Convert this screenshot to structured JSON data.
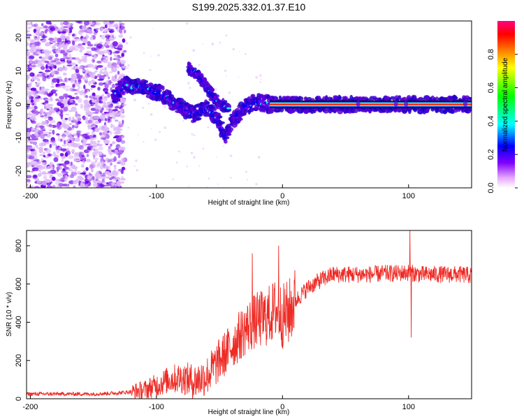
{
  "title": "S199.2025.332.01.37.E10",
  "chart_data": [
    {
      "type": "heatmap",
      "name": "spectrogram",
      "xlabel": "Height of straight line (km)",
      "ylabel": "Frequency (Hz)",
      "xlim": [
        -203,
        150
      ],
      "ylim": [
        -25,
        25
      ],
      "xticks": [
        -200,
        -100,
        0,
        100
      ],
      "yticks": [
        -20,
        -10,
        0,
        10,
        20
      ],
      "colorbar": {
        "label": "Normalized spectral amplitude",
        "ticks": [
          0.0,
          0.2,
          0.4,
          0.6,
          0.8
        ],
        "range": [
          0,
          1
        ],
        "colors": [
          "#ffffff",
          "#e6a8ff",
          "#8000ff",
          "#0000ff",
          "#00ffff",
          "#00ff00",
          "#ffff00",
          "#ff8000",
          "#ff0000",
          "#ff0080"
        ]
      },
      "features": [
        {
          "label": "noise",
          "x_range": [
            -203,
            -125
          ],
          "freq_range": [
            -25,
            25
          ],
          "amplitude": 0.1
        },
        {
          "label": "trace",
          "points": [
            [
              -135,
              2
            ],
            [
              -125,
              6
            ],
            [
              -110,
              5
            ],
            [
              -95,
              3
            ],
            [
              -80,
              -1
            ],
            [
              -70,
              -3
            ],
            [
              -60,
              -1
            ],
            [
              -52,
              -4
            ],
            [
              -45,
              -10
            ],
            [
              -40,
              -5
            ],
            [
              -35,
              -3
            ],
            [
              -30,
              -1
            ],
            [
              -20,
              1
            ],
            [
              -10,
              0
            ],
            [
              0,
              0
            ],
            [
              10,
              0
            ],
            [
              150,
              0
            ]
          ]
        },
        {
          "label": "upper-branch",
          "points": [
            [
              -75,
              11
            ],
            [
              -65,
              8
            ],
            [
              -58,
              4
            ],
            [
              -50,
              0
            ],
            [
              -42,
              -1
            ]
          ]
        },
        {
          "label": "constant-band",
          "x_range": [
            -10,
            150
          ],
          "frequency": 0,
          "amplitude": 0.95
        }
      ]
    },
    {
      "type": "line",
      "name": "snr",
      "xlabel": "Height of straight line (km)",
      "ylabel": "SNR (10 * v/v)",
      "xlim": [
        -203,
        150
      ],
      "ylim": [
        0,
        880
      ],
      "xticks": [
        -200,
        -100,
        0,
        100
      ],
      "yticks": [
        0,
        200,
        400,
        600,
        800
      ],
      "color": "#ee2a24",
      "series": [
        {
          "name": "SNR",
          "x": [
            -203,
            -180,
            -150,
            -130,
            -110,
            -100,
            -90,
            -80,
            -70,
            -60,
            -50,
            -40,
            -30,
            -25,
            -20,
            -15,
            -10,
            -5,
            0,
            5,
            10,
            20,
            30,
            40,
            50,
            60,
            70,
            80,
            90,
            100,
            110,
            120,
            130,
            140,
            150
          ],
          "y": [
            25,
            25,
            25,
            30,
            45,
            70,
            100,
            110,
            90,
            120,
            200,
            280,
            360,
            390,
            410,
            420,
            440,
            470,
            430,
            450,
            510,
            580,
            620,
            650,
            650,
            650,
            650,
            655,
            655,
            660,
            650,
            650,
            650,
            650,
            645
          ]
        }
      ],
      "spikes": [
        {
          "x": -24,
          "y": 760
        },
        {
          "x": -3,
          "y": 800
        },
        {
          "x": 101,
          "y": 880
        },
        {
          "x": 102,
          "y": 320
        }
      ]
    }
  ]
}
